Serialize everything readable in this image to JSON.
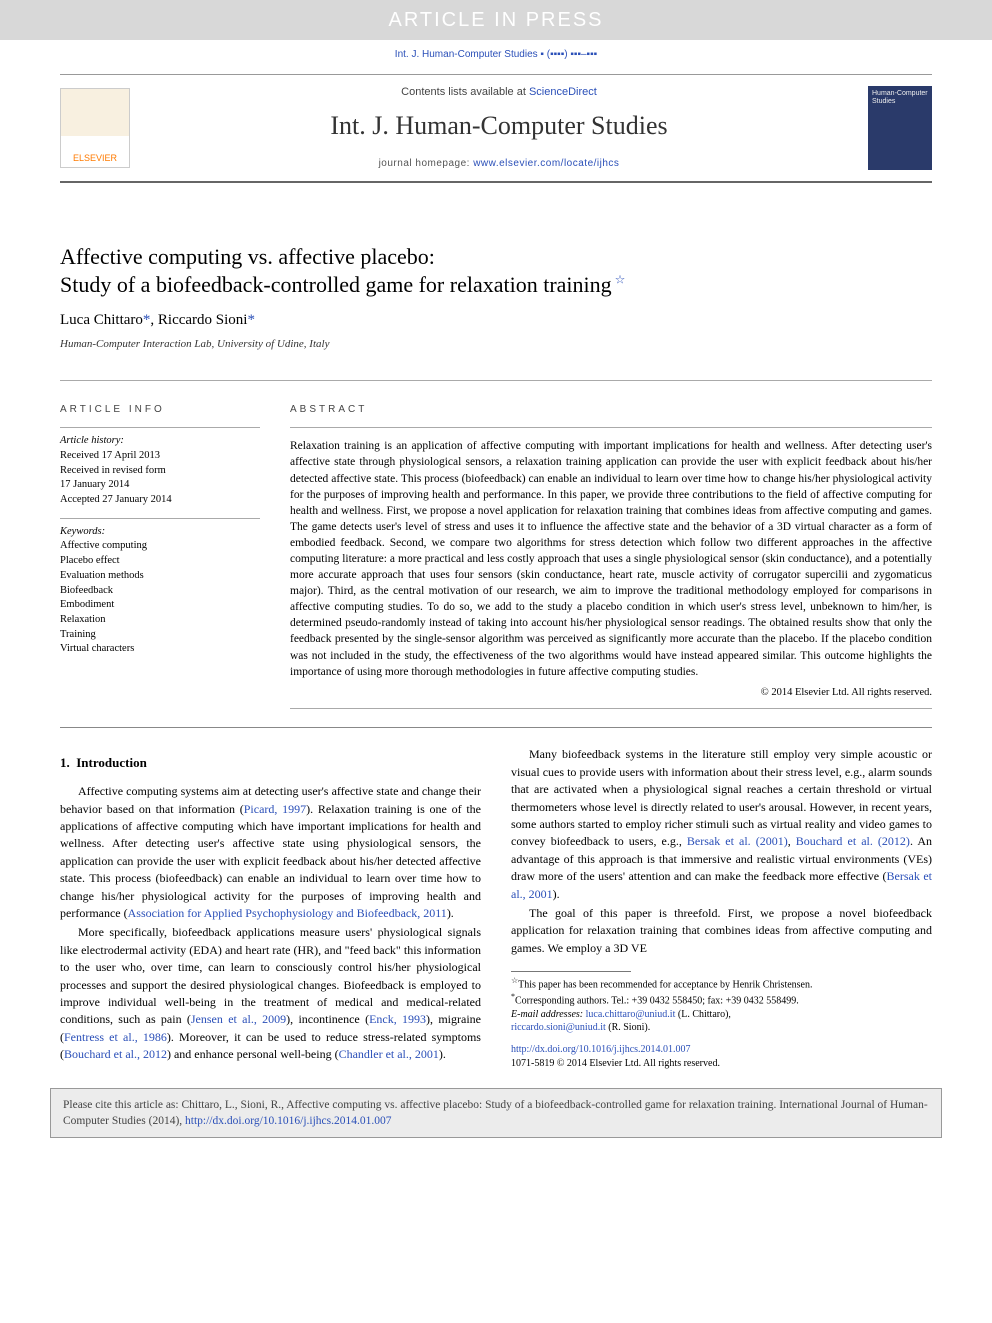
{
  "banner": "ARTICLE IN PRESS",
  "citation_short": "Int. J. Human-Computer Studies ▪ (▪▪▪▪) ▪▪▪–▪▪▪",
  "masthead": {
    "elsevier": "ELSEVIER",
    "contents_prefix": "Contents lists available at ",
    "contents_link": "ScienceDirect",
    "journal": "Int. J. Human-Computer Studies",
    "homepage_prefix": "journal homepage: ",
    "homepage_url": "www.elsevier.com/locate/ijhcs",
    "cover_text": "Human-Computer Studies"
  },
  "title_line1": "Affective computing vs. affective placebo:",
  "title_line2": "Study of a biofeedback-controlled game for relaxation training",
  "authors": {
    "a1": "Luca Chittaro",
    "a2": "Riccardo Sioni",
    "ast": "*"
  },
  "affiliation": "Human-Computer Interaction Lab, University of Udine, Italy",
  "info": {
    "head": "ARTICLE INFO",
    "hist_head": "Article history:",
    "h1": "Received 17 April 2013",
    "h2": "Received in revised form",
    "h3": "17 January 2014",
    "h4": "Accepted 27 January 2014",
    "kw_head": "Keywords:",
    "kw": [
      "Affective computing",
      "Placebo effect",
      "Evaluation methods",
      "Biofeedback",
      "Embodiment",
      "Relaxation",
      "Training",
      "Virtual characters"
    ]
  },
  "abstract": {
    "head": "ABSTRACT",
    "body": "Relaxation training is an application of affective computing with important implications for health and wellness. After detecting user's affective state through physiological sensors, a relaxation training application can provide the user with explicit feedback about his/her detected affective state. This process (biofeedback) can enable an individual to learn over time how to change his/her physiological activity for the purposes of improving health and performance. In this paper, we provide three contributions to the field of affective computing for health and wellness. First, we propose a novel application for relaxation training that combines ideas from affective computing and games. The game detects user's level of stress and uses it to influence the affective state and the behavior of a 3D virtual character as a form of embodied feedback. Second, we compare two algorithms for stress detection which follow two different approaches in the affective computing literature: a more practical and less costly approach that uses a single physiological sensor (skin conductance), and a potentially more accurate approach that uses four sensors (skin conductance, heart rate, muscle activity of corrugator supercilii and zygomaticus major). Third, as the central motivation of our research, we aim to improve the traditional methodology employed for comparisons in affective computing studies. To do so, we add to the study a placebo condition in which user's stress level, unbeknown to him/her, is determined pseudo-randomly instead of taking into account his/her physiological sensor readings. The obtained results show that only the feedback presented by the single-sensor algorithm was perceived as significantly more accurate than the placebo. If the placebo condition was not included in the study, the effectiveness of the two algorithms would have instead appeared similar. This outcome highlights the importance of using more thorough methodologies in future affective computing studies.",
    "copyright": "© 2014 Elsevier Ltd. All rights reserved."
  },
  "body": {
    "h1_num": "1.",
    "h1_title": "Introduction",
    "p1a": "Affective computing systems aim at detecting user's affective state and change their behavior based on that information (",
    "p1c1": "Picard, 1997",
    "p1b": "). Relaxation training is one of the applications of affective computing which have important implications for health and wellness. After detecting user's affective state using physiological sensors, the application can provide the user with explicit feedback about his/her detected affective state. This process (biofeedback) can enable an individual to learn over time how to change his/her physiological activity for the purposes of improving health and performance (",
    "p1c2": "Association for Applied Psychophysiology and Biofeedback, 2011",
    "p1e": ").",
    "p2a": "More specifically, biofeedback applications measure users' physiological signals like electrodermal activity (EDA) and heart rate (HR), and \"feed back\" this information to the user who, over time, can learn to ",
    "p2b": "consciously control his/her physiological processes and support the desired physiological changes. Biofeedback is employed to improve individual well-being in the treatment of medical and medical-related conditions, such as pain (",
    "p2c1": "Jensen et al., 2009",
    "p2c": "), incontinence (",
    "p2c2": "Enck, 1993",
    "p2d": "), migraine (",
    "p2c3": "Fentress et al., 1986",
    "p2e": "). Moreover, it can be used to reduce stress-related symptoms (",
    "p2c4": "Bouchard et al., 2012",
    "p2f": ") and enhance personal well-being (",
    "p2c5": "Chandler et al., 2001",
    "p2g": ").",
    "p3a": "Many biofeedback systems in the literature still employ very simple acoustic or visual cues to provide users with information about their stress level, e.g., alarm sounds that are activated when a physiological signal reaches a certain threshold or virtual thermometers whose level is directly related to user's arousal. However, in recent years, some authors started to employ richer stimuli such as virtual reality and video games to convey biofeedback to users, e.g., ",
    "p3c1": "Bersak et al. (2001)",
    "p3b": ", ",
    "p3c2": "Bouchard et al. (2012)",
    "p3c": ". An advantage of this approach is that immersive and realistic virtual environments (VEs) draw more of the users' attention and can make the feedback more effective (",
    "p3c3": "Bersak et al., 2001",
    "p3d": ").",
    "p4": "The goal of this paper is threefold. First, we propose a novel biofeedback application for relaxation training that combines ideas from affective computing and games. We employ a 3D VE"
  },
  "footnotes": {
    "star": "This paper has been recommended for acceptance by Henrik Christensen.",
    "corr": "Corresponding authors. Tel.: +39 0432 558450; fax: +39 0432 558499.",
    "email_lbl": "E-mail addresses: ",
    "e1": "luca.chittaro@uniud.it",
    "e1n": " (L. Chittaro),",
    "e2": "riccardo.sioni@uniud.it",
    "e2n": " (R. Sioni)."
  },
  "doi": {
    "url": "http://dx.doi.org/10.1016/j.ijhcs.2014.01.007",
    "issn": "1071-5819 © 2014 Elsevier Ltd. All rights reserved."
  },
  "citebox": {
    "pre": "Please cite this article as: Chittaro, L., Sioni, R., Affective computing vs. affective placebo: Study of a biofeedback-controlled game for relaxation training. International Journal of Human-Computer Studies (2014), ",
    "url": "http://dx.doi.org/10.1016/j.ijhcs.2014.01.007"
  }
}
